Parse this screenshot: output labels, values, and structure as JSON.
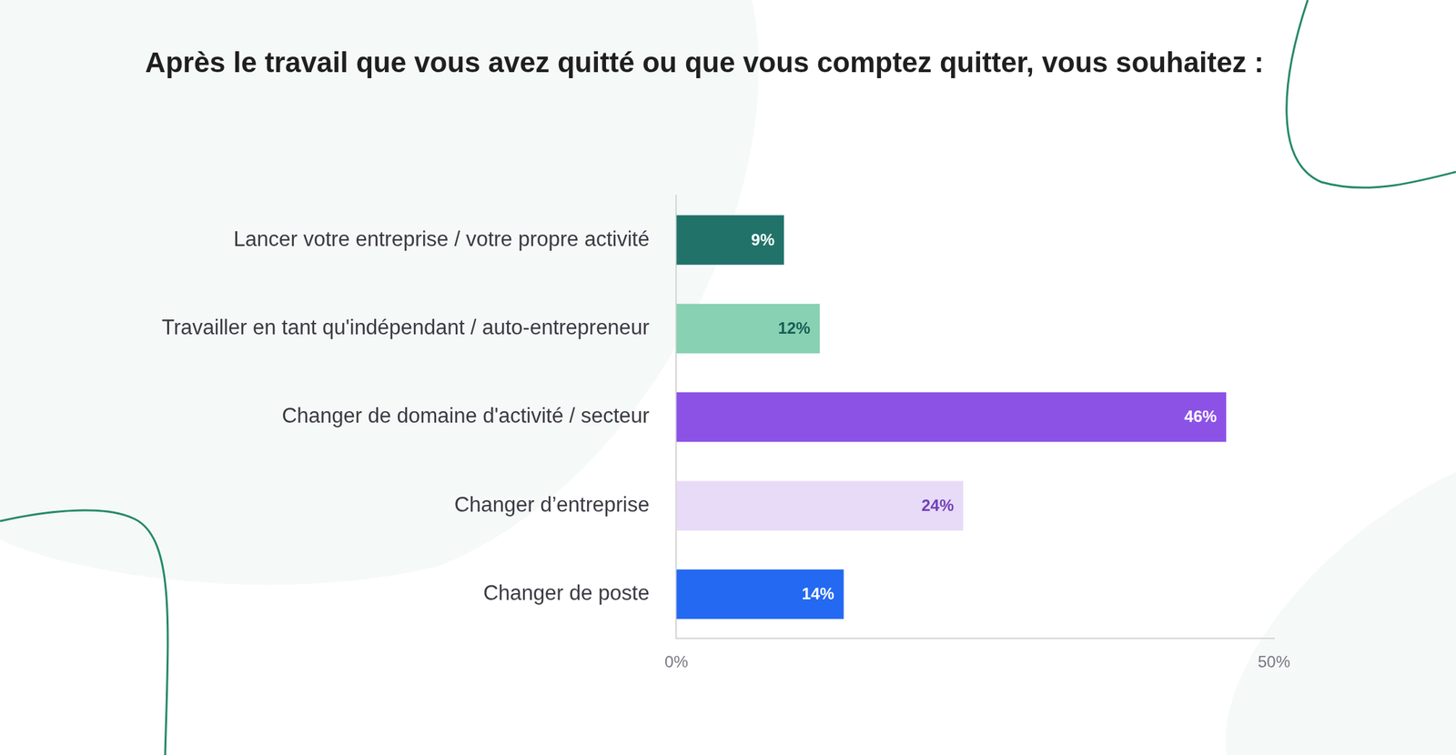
{
  "chart_data": {
    "type": "bar",
    "orientation": "horizontal",
    "title": "Après le travail que vous avez quitté ou que vous comptez quitter, vous souhaitez :",
    "categories": [
      "Lancer votre entreprise / votre propre activité",
      "Travailler en tant qu'indépendant / auto-entrepreneur",
      "Changer de domaine d'activité / secteur",
      "Changer d’entreprise",
      "Changer de poste"
    ],
    "values": [
      9,
      12,
      46,
      24,
      14
    ],
    "value_labels": [
      "9%",
      "12%",
      "46%",
      "24%",
      "14%"
    ],
    "colors": [
      "#21736a",
      "#88d1b2",
      "#8c52e6",
      "#e8dbf7",
      "#2469f2"
    ],
    "xlim": [
      0,
      50
    ],
    "xticks": [
      {
        "value": 0,
        "label": "0%"
      },
      {
        "value": 50,
        "label": "50%"
      }
    ],
    "grid": false,
    "data_labels": true
  }
}
